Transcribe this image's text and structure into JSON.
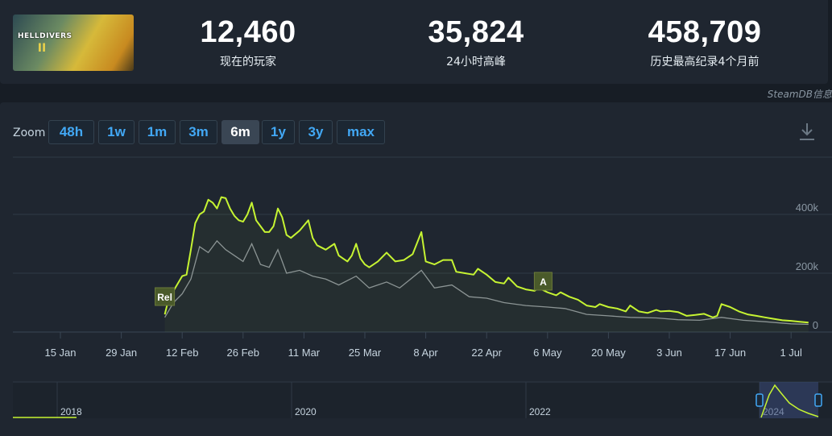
{
  "header": {
    "game_logo_text": "HELLDIVERS",
    "game_logo_num": "II",
    "stats": [
      {
        "value": "12,460",
        "label": "现在的玩家"
      },
      {
        "value": "35,824",
        "label": "24小时高峰"
      },
      {
        "value": "458,709",
        "label": "历史最高纪录4个月前"
      }
    ]
  },
  "credit": "SteamDB信息",
  "zoom": {
    "label": "Zoom",
    "buttons": [
      "48h",
      "1w",
      "1m",
      "3m",
      "6m",
      "1y",
      "3y",
      "max"
    ],
    "active": "6m"
  },
  "icons": {
    "download": "download-icon"
  },
  "colors": {
    "players_line": "#c6f432",
    "avg_line": "#8a9199",
    "flag_bg": "#4a5a2a",
    "accent": "#42a8f5"
  },
  "chart_data": {
    "type": "line",
    "x_tick_labels": [
      "15 Jan",
      "29 Jan",
      "12 Feb",
      "26 Feb",
      "11 Mar",
      "25 Mar",
      "8 Apr",
      "22 Apr",
      "6 May",
      "20 May",
      "3 Jun",
      "17 Jun",
      "1 Jul"
    ],
    "y_tick_labels": [
      "400k",
      "200k",
      "0"
    ],
    "ylim": [
      0,
      500000
    ],
    "grid": true,
    "annotations": [
      {
        "label": "Rel",
        "date": "2024-02-08"
      },
      {
        "label": "A",
        "date": "2024-05-05"
      }
    ],
    "series": [
      {
        "values": [
          [
            "2024-02-08",
            60000
          ],
          [
            "2024-02-09",
            120000
          ],
          [
            "2024-02-10",
            140000
          ],
          [
            "2024-02-11",
            165000
          ],
          [
            "2024-02-12",
            190000
          ],
          [
            "2024-02-13",
            195000
          ],
          [
            "2024-02-14",
            280000
          ],
          [
            "2024-02-15",
            370000
          ],
          [
            "2024-02-16",
            400000
          ],
          [
            "2024-02-17",
            410000
          ],
          [
            "2024-02-18",
            450000
          ],
          [
            "2024-02-19",
            440000
          ],
          [
            "2024-02-20",
            420000
          ],
          [
            "2024-02-21",
            458709
          ],
          [
            "2024-02-22",
            455000
          ],
          [
            "2024-02-23",
            420000
          ],
          [
            "2024-02-24",
            395000
          ],
          [
            "2024-02-25",
            380000
          ],
          [
            "2024-02-26",
            375000
          ],
          [
            "2024-02-27",
            400000
          ],
          [
            "2024-02-28",
            440000
          ],
          [
            "2024-02-29",
            380000
          ],
          [
            "2024-03-01",
            360000
          ],
          [
            "2024-03-02",
            340000
          ],
          [
            "2024-03-03",
            340000
          ],
          [
            "2024-03-04",
            360000
          ],
          [
            "2024-03-05",
            420000
          ],
          [
            "2024-03-06",
            390000
          ],
          [
            "2024-03-07",
            330000
          ],
          [
            "2024-03-08",
            320000
          ],
          [
            "2024-03-10",
            345000
          ],
          [
            "2024-03-12",
            380000
          ],
          [
            "2024-03-13",
            320000
          ],
          [
            "2024-03-14",
            295000
          ],
          [
            "2024-03-16",
            280000
          ],
          [
            "2024-03-18",
            300000
          ],
          [
            "2024-03-19",
            260000
          ],
          [
            "2024-03-20",
            250000
          ],
          [
            "2024-03-21",
            240000
          ],
          [
            "2024-03-22",
            260000
          ],
          [
            "2024-03-23",
            300000
          ],
          [
            "2024-03-24",
            250000
          ],
          [
            "2024-03-25",
            230000
          ],
          [
            "2024-03-26",
            220000
          ],
          [
            "2024-03-28",
            240000
          ],
          [
            "2024-03-30",
            270000
          ],
          [
            "2024-04-01",
            240000
          ],
          [
            "2024-04-03",
            245000
          ],
          [
            "2024-04-05",
            265000
          ],
          [
            "2024-04-07",
            340000
          ],
          [
            "2024-04-08",
            240000
          ],
          [
            "2024-04-10",
            230000
          ],
          [
            "2024-04-12",
            245000
          ],
          [
            "2024-04-14",
            245000
          ],
          [
            "2024-04-15",
            205000
          ],
          [
            "2024-04-17",
            200000
          ],
          [
            "2024-04-19",
            195000
          ],
          [
            "2024-04-20",
            215000
          ],
          [
            "2024-04-22",
            195000
          ],
          [
            "2024-04-24",
            170000
          ],
          [
            "2024-04-26",
            165000
          ],
          [
            "2024-04-27",
            185000
          ],
          [
            "2024-04-29",
            155000
          ],
          [
            "2024-05-01",
            145000
          ],
          [
            "2024-05-03",
            140000
          ],
          [
            "2024-05-04",
            150000
          ],
          [
            "2024-05-06",
            135000
          ],
          [
            "2024-05-08",
            125000
          ],
          [
            "2024-05-09",
            135000
          ],
          [
            "2024-05-11",
            120000
          ],
          [
            "2024-05-13",
            110000
          ],
          [
            "2024-05-15",
            90000
          ],
          [
            "2024-05-17",
            85000
          ],
          [
            "2024-05-18",
            95000
          ],
          [
            "2024-05-20",
            85000
          ],
          [
            "2024-05-22",
            80000
          ],
          [
            "2024-05-24",
            70000
          ],
          [
            "2024-05-25",
            90000
          ],
          [
            "2024-05-27",
            70000
          ],
          [
            "2024-05-29",
            65000
          ],
          [
            "2024-05-31",
            75000
          ],
          [
            "2024-06-01",
            70000
          ],
          [
            "2024-06-03",
            72000
          ],
          [
            "2024-06-05",
            68000
          ],
          [
            "2024-06-07",
            55000
          ],
          [
            "2024-06-09",
            58000
          ],
          [
            "2024-06-11",
            62000
          ],
          [
            "2024-06-13",
            50000
          ],
          [
            "2024-06-14",
            55000
          ],
          [
            "2024-06-15",
            95000
          ],
          [
            "2024-06-17",
            85000
          ],
          [
            "2024-06-19",
            70000
          ],
          [
            "2024-06-21",
            60000
          ],
          [
            "2024-06-23",
            55000
          ],
          [
            "2024-06-25",
            50000
          ],
          [
            "2024-06-27",
            45000
          ],
          [
            "2024-06-29",
            40000
          ],
          [
            "2024-07-01",
            38000
          ],
          [
            "2024-07-03",
            35000
          ],
          [
            "2024-07-05",
            32000
          ]
        ]
      },
      {
        "values": [
          [
            "2024-02-08",
            50000
          ],
          [
            "2024-02-10",
            100000
          ],
          [
            "2024-02-12",
            130000
          ],
          [
            "2024-02-14",
            180000
          ],
          [
            "2024-02-16",
            290000
          ],
          [
            "2024-02-18",
            270000
          ],
          [
            "2024-02-20",
            310000
          ],
          [
            "2024-02-22",
            280000
          ],
          [
            "2024-02-24",
            260000
          ],
          [
            "2024-02-26",
            240000
          ],
          [
            "2024-02-28",
            300000
          ],
          [
            "2024-03-01",
            230000
          ],
          [
            "2024-03-03",
            220000
          ],
          [
            "2024-03-05",
            280000
          ],
          [
            "2024-03-07",
            200000
          ],
          [
            "2024-03-10",
            210000
          ],
          [
            "2024-03-13",
            190000
          ],
          [
            "2024-03-16",
            180000
          ],
          [
            "2024-03-19",
            160000
          ],
          [
            "2024-03-23",
            190000
          ],
          [
            "2024-03-26",
            150000
          ],
          [
            "2024-03-30",
            170000
          ],
          [
            "2024-04-02",
            150000
          ],
          [
            "2024-04-07",
            210000
          ],
          [
            "2024-04-10",
            150000
          ],
          [
            "2024-04-14",
            160000
          ],
          [
            "2024-04-18",
            120000
          ],
          [
            "2024-04-22",
            115000
          ],
          [
            "2024-04-26",
            100000
          ],
          [
            "2024-05-01",
            90000
          ],
          [
            "2024-05-06",
            85000
          ],
          [
            "2024-05-10",
            80000
          ],
          [
            "2024-05-15",
            60000
          ],
          [
            "2024-05-20",
            55000
          ],
          [
            "2024-05-25",
            50000
          ],
          [
            "2024-05-31",
            48000
          ],
          [
            "2024-06-05",
            42000
          ],
          [
            "2024-06-10",
            40000
          ],
          [
            "2024-06-15",
            50000
          ],
          [
            "2024-06-20",
            40000
          ],
          [
            "2024-06-25",
            35000
          ],
          [
            "2024-07-01",
            28000
          ],
          [
            "2024-07-05",
            26000
          ]
        ]
      }
    ],
    "navigator": {
      "x_tick_labels": [
        "2018",
        "2020",
        "2022",
        "2024"
      ]
    }
  }
}
